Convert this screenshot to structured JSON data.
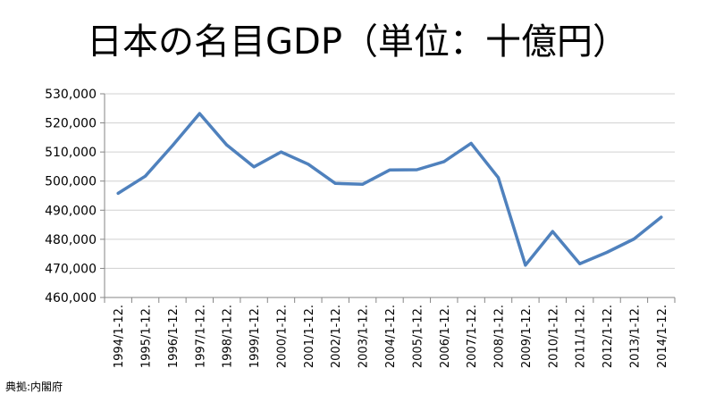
{
  "chart_data": {
    "type": "line",
    "title": "日本の名目GDP（単位：十億円）",
    "x": [
      "1994/1-12.",
      "1995/1-12.",
      "1996/1-12.",
      "1997/1-12.",
      "1998/1-12.",
      "1999/1-12.",
      "2000/1-12.",
      "2001/1-12.",
      "2002/1-12.",
      "2003/1-12.",
      "2004/1-12.",
      "2005/1-12.",
      "2006/1-12.",
      "2007/1-12.",
      "2008/1-12.",
      "2009/1-12.",
      "2010/1-12.",
      "2011/1-12.",
      "2012/1-12.",
      "2013/1-12.",
      "2014/1-12."
    ],
    "series": [
      {
        "values": [
          495800,
          501700,
          512200,
          523200,
          512400,
          504900,
          510000,
          505800,
          499200,
          498900,
          503800,
          503900,
          506700,
          513000,
          501200,
          471100,
          482700,
          471600,
          475500,
          480100,
          487600
        ]
      }
    ],
    "yticks": [
      "460,000",
      "470,000",
      "480,000",
      "490,000",
      "500,000",
      "510,000",
      "520,000",
      "530,000"
    ],
    "ylim": [
      460000,
      530000
    ],
    "ystep": 10000,
    "grid": true,
    "legend": "none",
    "line_color": "#4f81bd",
    "source": "典拠:内閣府"
  }
}
